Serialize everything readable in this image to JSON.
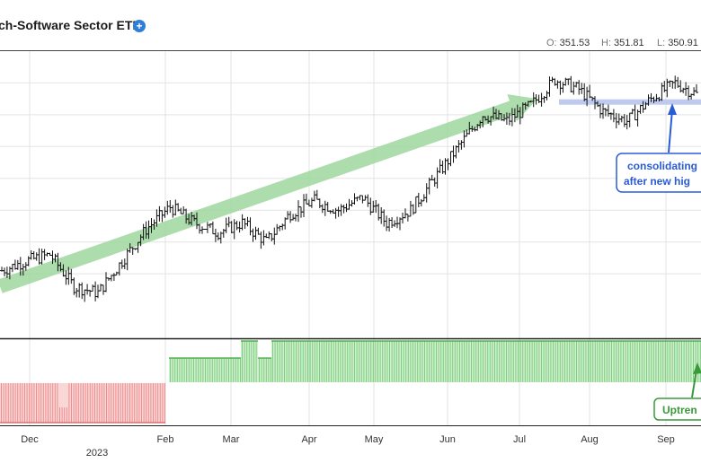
{
  "header": {
    "title": "ch-Software Sector ETF",
    "info_icon": "plus-circle-icon",
    "ohlc": [
      {
        "label": "O:",
        "value": "351.53"
      },
      {
        "label": "H:",
        "value": "351.81"
      },
      {
        "label": "L:",
        "value": "350.91"
      }
    ]
  },
  "annotations": {
    "consolidating_line1": "consolidating",
    "consolidating_line2": "after new hig",
    "uptrend": "Uptren"
  },
  "colors": {
    "trend_arrow": "#9fd79f",
    "resistance_band": "#b8c4f0",
    "annotation_blue": "#2a5bd7",
    "annotation_green": "#3a9a3a",
    "uptrend_bars": "#7ccf7c",
    "downtrend_bars": "#f08c8c",
    "grid": "#e3e3e3"
  },
  "chart_data": [
    {
      "type": "ohlc",
      "title": "",
      "x_axis": {
        "month_labels": [
          "Dec",
          "Feb",
          "Mar",
          "Apr",
          "May",
          "Jun",
          "Jul",
          "Aug",
          "Sep"
        ],
        "year_label": "2023"
      },
      "grid": true,
      "price_path": [
        {
          "period": "late Nov",
          "price": 291
        },
        {
          "period": "early Dec",
          "price": 294
        },
        {
          "period": "mid Dec",
          "price": 296
        },
        {
          "period": "late Dec",
          "price": 286
        },
        {
          "period": "early Jan",
          "price": 284
        },
        {
          "period": "mid Jan",
          "price": 294
        },
        {
          "period": "late Jan",
          "price": 304
        },
        {
          "period": "early Feb",
          "price": 311
        },
        {
          "period": "mid Feb",
          "price": 306
        },
        {
          "period": "late Feb",
          "price": 303
        },
        {
          "period": "early Mar",
          "price": 306
        },
        {
          "period": "mid Mar",
          "price": 300
        },
        {
          "period": "late Mar",
          "price": 309
        },
        {
          "period": "early Apr",
          "price": 313
        },
        {
          "period": "mid Apr",
          "price": 310
        },
        {
          "period": "late Apr",
          "price": 314
        },
        {
          "period": "early May",
          "price": 306
        },
        {
          "period": "mid May",
          "price": 310
        },
        {
          "period": "late May",
          "price": 320
        },
        {
          "period": "early Jun",
          "price": 330
        },
        {
          "period": "mid Jun",
          "price": 340
        },
        {
          "period": "late Jun",
          "price": 338
        },
        {
          "period": "early Jul",
          "price": 343
        },
        {
          "period": "mid Jul",
          "price": 351
        },
        {
          "period": "late Jul",
          "price": 348
        },
        {
          "period": "early Aug",
          "price": 341
        },
        {
          "period": "mid Aug",
          "price": 338
        },
        {
          "period": "late Aug",
          "price": 345
        },
        {
          "period": "early Sep",
          "price": 350
        },
        {
          "period": "mid Sep",
          "price": 346
        }
      ],
      "trend_arrow": {
        "from_price": 286,
        "to_price": 345
      },
      "resistance_level": 344
    },
    {
      "type": "bar",
      "indicator": "trend state",
      "segments": [
        {
          "start": "late Nov",
          "end": "end Jan",
          "state": "down",
          "color": "#f08c8c"
        },
        {
          "start": "early Feb",
          "end": "early Mar",
          "state": "up",
          "level": "medium",
          "color": "#7ccf7c"
        },
        {
          "start": "early Mar",
          "end": "mid Mar",
          "state": "up",
          "level": "high",
          "color": "#7ccf7c"
        },
        {
          "start": "mid Mar",
          "end": "late Mar",
          "state": "up",
          "level": "medium",
          "color": "#7ccf7c"
        },
        {
          "start": "late Mar",
          "end": "Sep",
          "state": "up",
          "level": "high",
          "color": "#7ccf7c"
        }
      ]
    }
  ]
}
